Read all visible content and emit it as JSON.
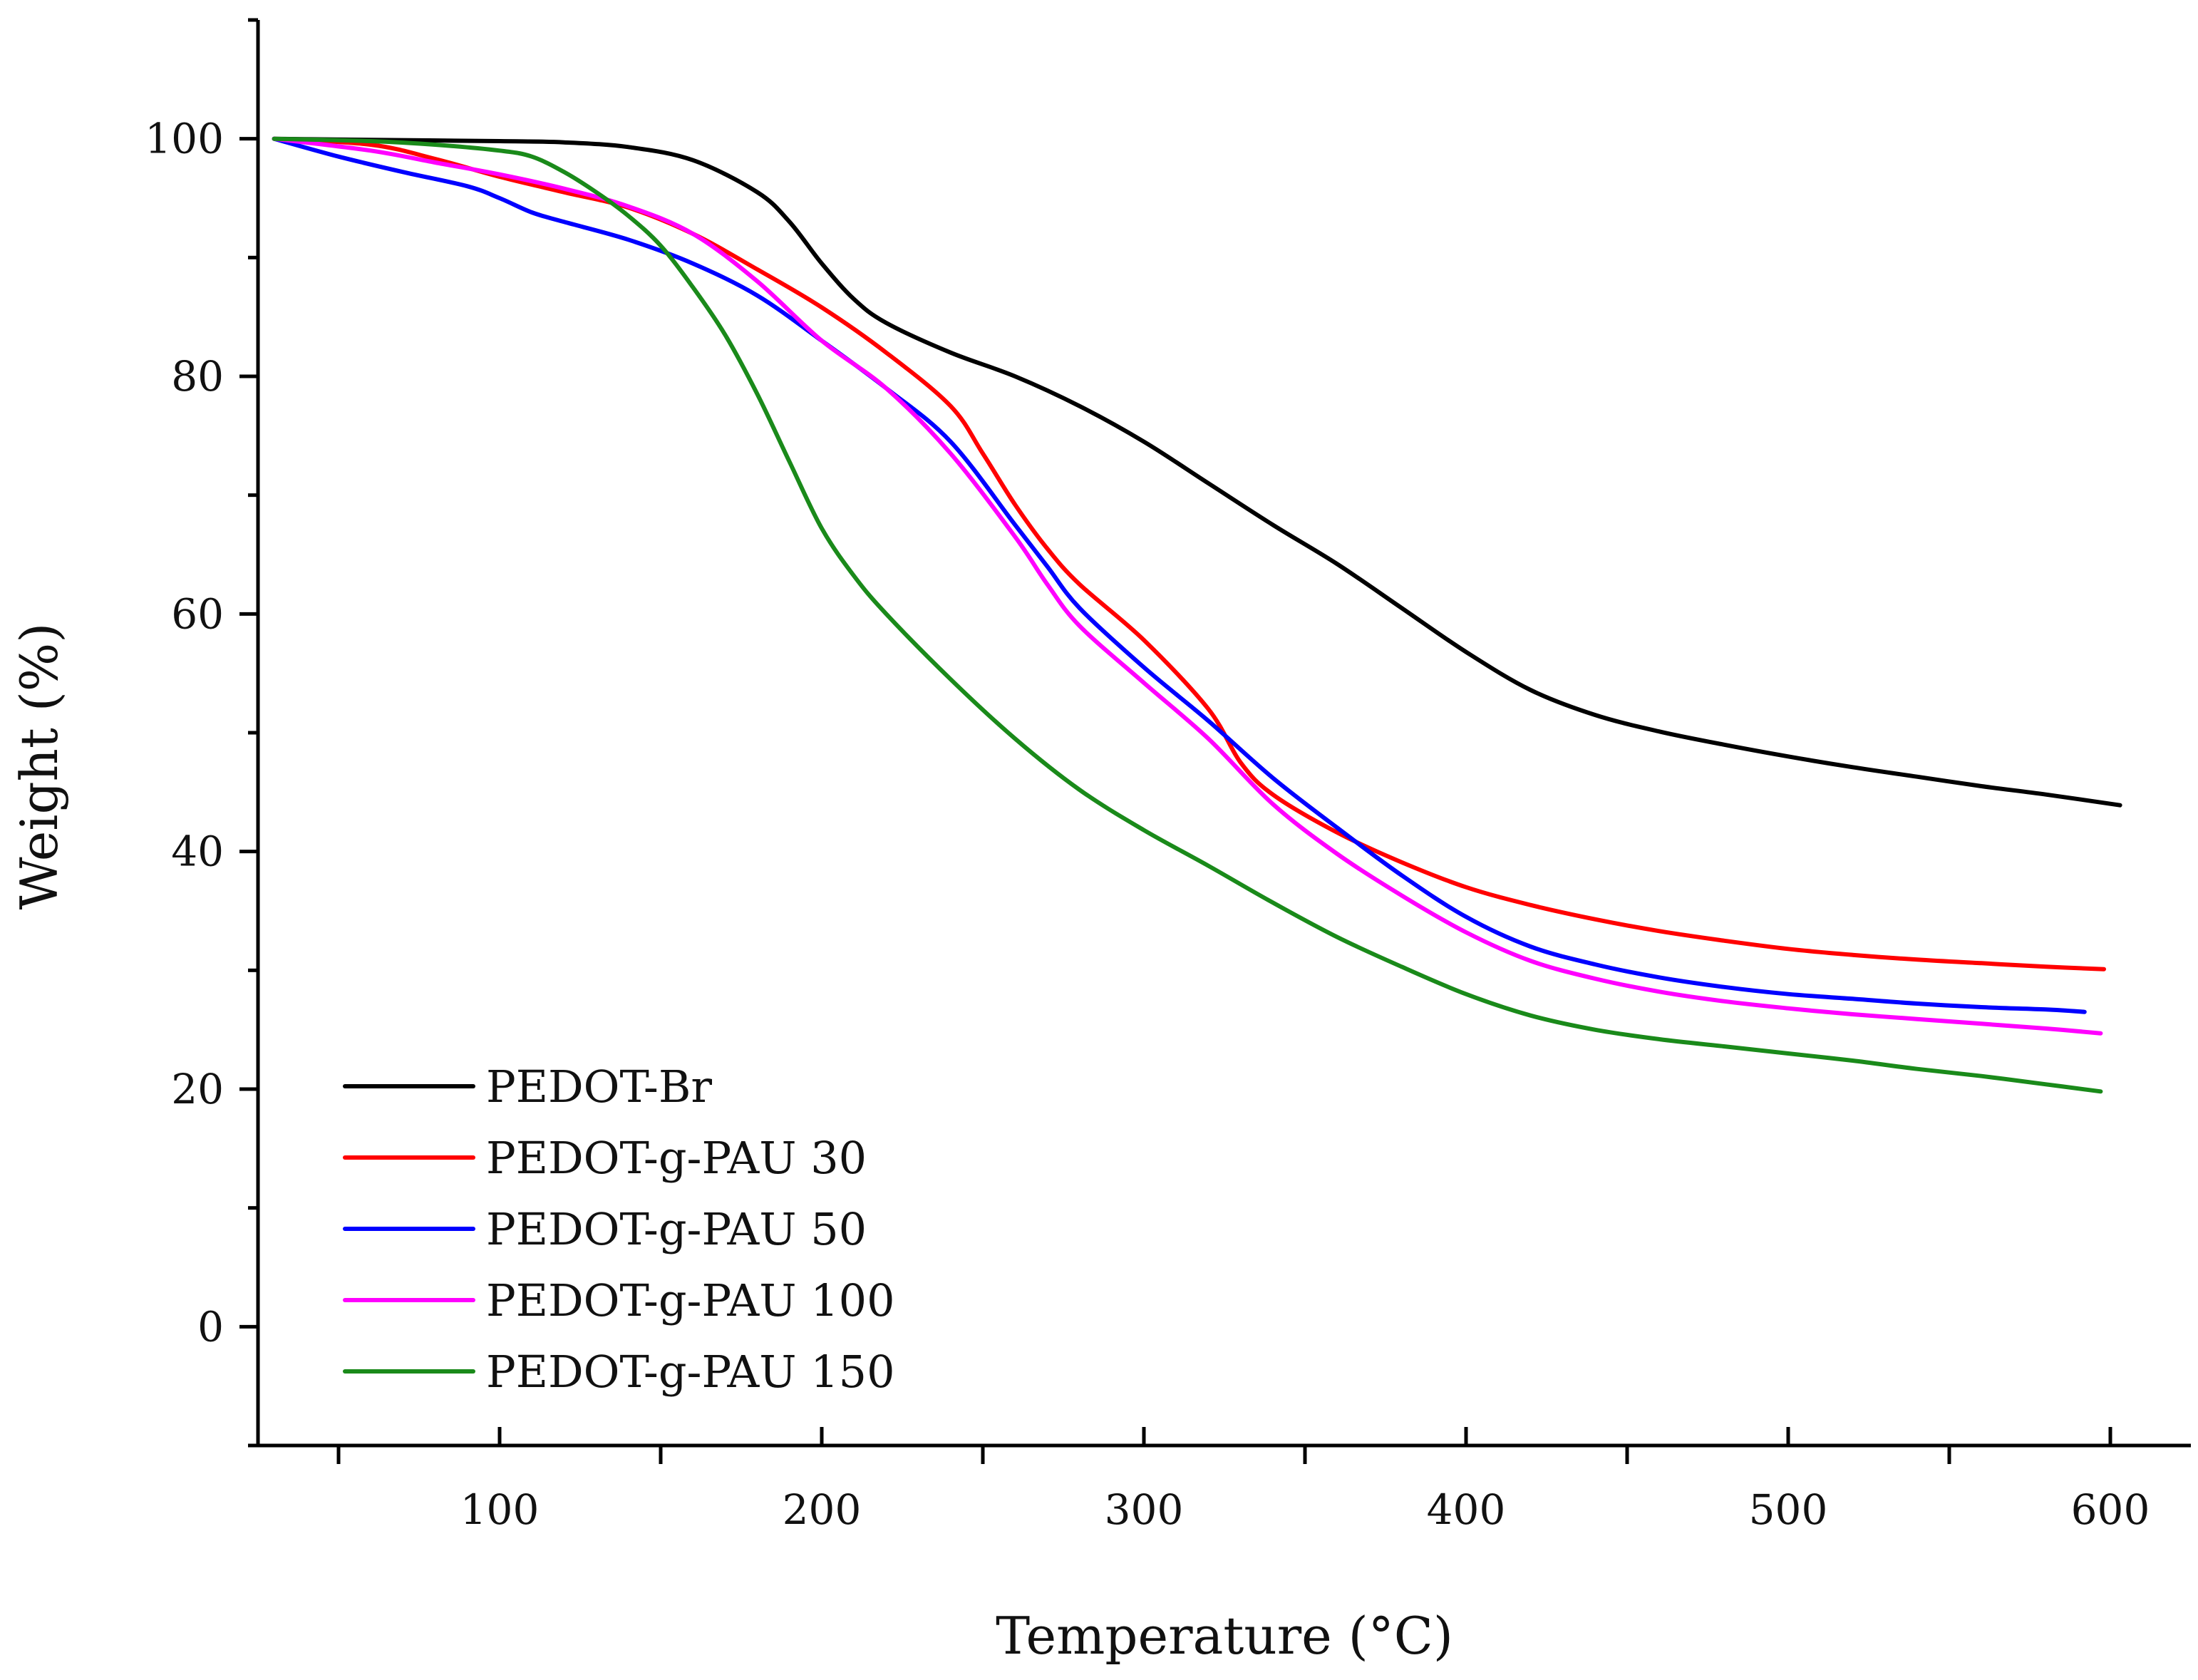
{
  "chart_data": {
    "type": "line",
    "title": "",
    "xlabel": "Temperature (°C)",
    "ylabel": "Weight (%)",
    "xlim": [
      25,
      625
    ],
    "ylim": [
      -10,
      110
    ],
    "x_major_ticks": [
      100,
      200,
      300,
      400,
      500,
      600
    ],
    "x_minor_ticks": [
      50,
      150,
      250,
      350,
      450,
      550
    ],
    "y_major_ticks": [
      0,
      20,
      40,
      60,
      80,
      100
    ],
    "y_minor_ticks": [
      -10,
      10,
      30,
      50,
      70,
      90,
      110
    ],
    "legend_position": "bottom-left",
    "grid": false,
    "series": [
      {
        "name": "PEDOT-Br",
        "color": "#000000",
        "x": [
          30,
          60,
          100,
          120,
          140,
          160,
          180,
          190,
          200,
          210,
          220,
          240,
          260,
          280,
          300,
          320,
          340,
          360,
          380,
          400,
          420,
          440,
          460,
          480,
          500,
          520,
          540,
          560,
          580,
          603
        ],
        "y": [
          100,
          99.9,
          99.8,
          99.7,
          99.3,
          98.2,
          95.5,
          93,
          89.5,
          86.5,
          84.5,
          82,
          80,
          77.5,
          74.5,
          71,
          67.5,
          64.2,
          60.5,
          56.8,
          53.6,
          51.5,
          50.1,
          49,
          48,
          47.1,
          46.3,
          45.5,
          44.8,
          43.9
        ]
      },
      {
        "name": "PEDOT-g-PAU 30",
        "color": "#ff0000",
        "x": [
          30,
          60,
          80,
          100,
          120,
          140,
          160,
          180,
          200,
          220,
          240,
          250,
          260,
          270,
          280,
          300,
          320,
          330,
          340,
          360,
          380,
          400,
          420,
          440,
          460,
          480,
          500,
          520,
          540,
          560,
          580,
          598
        ],
        "y": [
          100,
          99.5,
          98.3,
          96.8,
          95.5,
          94.2,
          92,
          89,
          85.8,
          82,
          77.5,
          73.5,
          69.2,
          65.5,
          62.5,
          57.8,
          52,
          47.5,
          44.8,
          41.6,
          39.1,
          37,
          35.5,
          34.3,
          33.3,
          32.5,
          31.8,
          31.3,
          30.9,
          30.6,
          30.3,
          30.1
        ]
      },
      {
        "name": "PEDOT-g-PAU 50",
        "color": "#0000ff",
        "x": [
          30,
          50,
          70,
          90,
          100,
          110,
          120,
          140,
          160,
          180,
          200,
          220,
          240,
          260,
          270,
          280,
          300,
          320,
          340,
          360,
          380,
          400,
          420,
          440,
          460,
          480,
          500,
          520,
          540,
          560,
          580,
          592
        ],
        "y": [
          100,
          98.5,
          97.2,
          96,
          95,
          93.8,
          93,
          91.5,
          89.5,
          86.8,
          83,
          79,
          74.5,
          67.5,
          64,
          60.5,
          55.5,
          51,
          46.2,
          42,
          38,
          34.5,
          32,
          30.5,
          29.4,
          28.6,
          28,
          27.6,
          27.2,
          26.9,
          26.7,
          26.5
        ]
      },
      {
        "name": "PEDOT-g-PAU 100",
        "color": "#ff00ff",
        "x": [
          30,
          60,
          80,
          100,
          120,
          140,
          160,
          180,
          200,
          220,
          240,
          260,
          270,
          280,
          300,
          320,
          340,
          360,
          380,
          400,
          420,
          440,
          460,
          480,
          500,
          520,
          540,
          560,
          580,
          597
        ],
        "y": [
          100,
          99,
          98,
          97,
          95.8,
          94.3,
          92,
          88,
          83,
          79,
          73.5,
          66.5,
          62.5,
          59,
          54.2,
          49.5,
          44,
          39.8,
          36.3,
          33.2,
          30.8,
          29.3,
          28.2,
          27.4,
          26.8,
          26.3,
          25.9,
          25.5,
          25.1,
          24.7
        ]
      },
      {
        "name": "PEDOT-g-PAU 150",
        "color": "#1a8a1a",
        "x": [
          30,
          60,
          80,
          100,
          110,
          120,
          130,
          140,
          150,
          160,
          170,
          180,
          190,
          200,
          210,
          220,
          240,
          260,
          280,
          300,
          320,
          340,
          360,
          380,
          400,
          420,
          440,
          460,
          480,
          500,
          520,
          540,
          560,
          580,
          597
        ],
        "y": [
          100,
          99.8,
          99.5,
          99,
          98.5,
          97.2,
          95.5,
          93.5,
          91,
          87.5,
          83.5,
          78.5,
          72.8,
          67.2,
          63.2,
          60,
          54.5,
          49.5,
          45.2,
          41.8,
          38.8,
          35.7,
          32.8,
          30.3,
          28,
          26.2,
          25,
          24.2,
          23.6,
          23,
          22.4,
          21.7,
          21.1,
          20.4,
          19.8
        ]
      }
    ]
  }
}
